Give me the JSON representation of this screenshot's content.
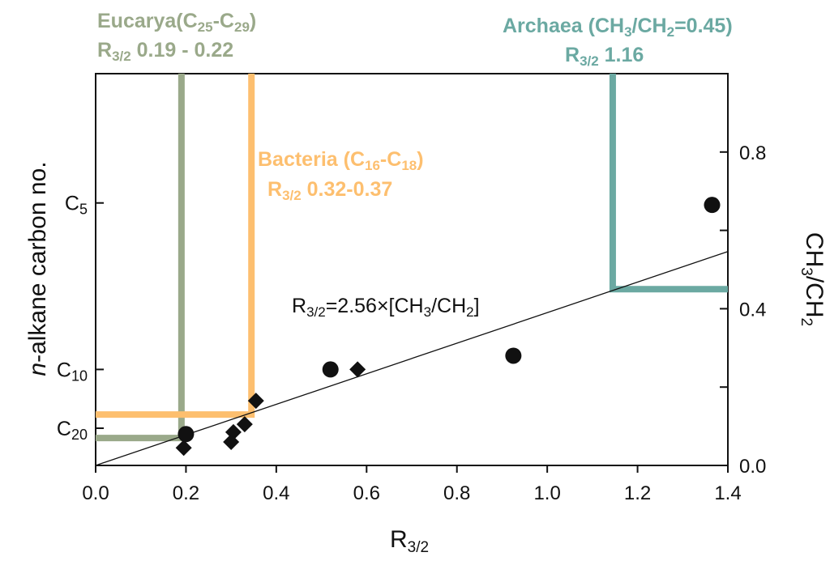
{
  "chart_data": {
    "type": "scatter",
    "title": "",
    "xlabel": "R3/2",
    "ylabel_left": "n-alkane carbon no.",
    "ylabel_right": "CH3/CH2",
    "xlim": [
      0.0,
      1.4
    ],
    "ylim_right": [
      0.0,
      1.0
    ],
    "x_ticks": [
      "0.0",
      "0.2",
      "0.4",
      "0.6",
      "0.8",
      "1.0",
      "1.2",
      "1.4"
    ],
    "y_right_ticks": [
      "0.0",
      "0.4",
      "0.8"
    ],
    "left_categories": [
      {
        "label": "C5",
        "y": 0.67
      },
      {
        "label": "C10",
        "y": 0.245
      },
      {
        "label": "C20",
        "y": 0.095
      }
    ],
    "series": [
      {
        "marker": "circle",
        "points": [
          {
            "x": 0.2,
            "y": 0.08
          },
          {
            "x": 0.52,
            "y": 0.245
          },
          {
            "x": 0.925,
            "y": 0.28
          },
          {
            "x": 1.365,
            "y": 0.665
          }
        ]
      },
      {
        "marker": "diamond",
        "points": [
          {
            "x": 0.195,
            "y": 0.045
          },
          {
            "x": 0.3,
            "y": 0.06
          },
          {
            "x": 0.305,
            "y": 0.085
          },
          {
            "x": 0.33,
            "y": 0.105
          },
          {
            "x": 0.355,
            "y": 0.165
          },
          {
            "x": 0.58,
            "y": 0.245
          }
        ]
      }
    ],
    "regression": {
      "label": "R3/2=2.56×[CH3/CH2]",
      "slope": 0.39,
      "intercept": 0.0,
      "x_range": [
        0.0,
        1.4
      ]
    },
    "groups": [
      {
        "name": "Eucarya",
        "line1_base": "Eucarya(C",
        "line1_sub1": "25",
        "line1_mid": "-C",
        "line1_sub2": "29",
        "line1_end": ")",
        "line2_main": "R",
        "line2_sub": "3/2",
        "line2_text": " 0.19 - 0.22",
        "color": "#9aa98a",
        "x_boundary": 0.19,
        "y_boundary": 0.07
      },
      {
        "name": "Bacteria",
        "line1_base": "Bacteria (C",
        "line1_sub1": "16",
        "line1_mid": "-C",
        "line1_sub2": "18",
        "line1_end": ")",
        "line2_main": "R",
        "line2_sub": "3/2",
        "line2_text": " 0.32-0.37",
        "color": "#fdbf6f",
        "x_boundary": 0.345,
        "y_boundary": 0.13
      },
      {
        "name": "Archaea",
        "line1_base": "Archaea (CH",
        "line1_sub1": "3",
        "line1_mid": "/CH",
        "line1_sub2": "2",
        "line1_end": "=0.45)",
        "line2_main": "R",
        "line2_sub": "3/2",
        "line2_text": " 1.16",
        "color": "#6ba9a2",
        "x_boundary": 1.145,
        "y_boundary": 0.45
      }
    ]
  }
}
